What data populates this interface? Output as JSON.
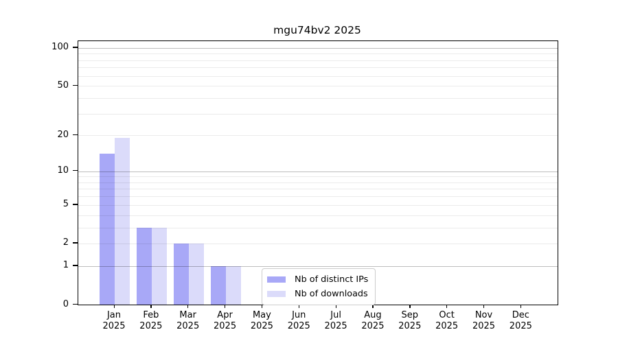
{
  "chart_data": {
    "type": "bar",
    "title": "mgu74bv2 2025",
    "scale": "log1p",
    "categories": [
      "Jan",
      "Feb",
      "Mar",
      "Apr",
      "May",
      "Jun",
      "Jul",
      "Aug",
      "Sep",
      "Oct",
      "Nov",
      "Dec"
    ],
    "year_label": "2025",
    "series": [
      {
        "name": "Nb of distinct IPs",
        "color": "#a8a8f7",
        "values": [
          14,
          3,
          2,
          1,
          0,
          0,
          0,
          0,
          0,
          0,
          0,
          0
        ]
      },
      {
        "name": "Nb of downloads",
        "color": "#dbdbfa",
        "values": [
          19,
          3,
          2,
          1,
          0,
          0,
          0,
          0,
          0,
          0,
          0,
          0
        ]
      }
    ],
    "xlabel": "",
    "ylabel": "",
    "ylim": [
      0,
      113
    ],
    "y_tick_values": [
      0,
      1,
      2,
      5,
      10,
      20,
      50,
      100
    ],
    "y_major_gridlines": [
      1,
      10,
      100
    ],
    "y_minor_gridlines": [
      2,
      3,
      4,
      5,
      6,
      7,
      8,
      9,
      20,
      30,
      40,
      50,
      60,
      70,
      80,
      90
    ],
    "grid": true,
    "legend_position": "lower-center-inside"
  }
}
